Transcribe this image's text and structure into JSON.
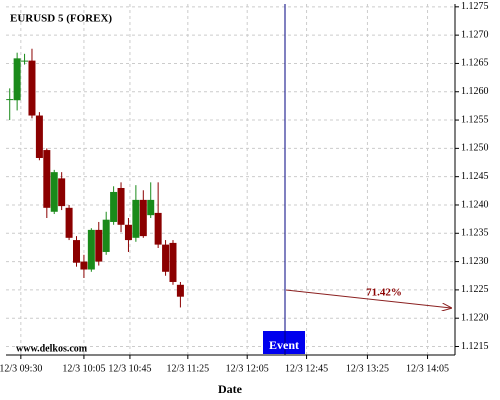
{
  "chart_data": {
    "type": "candlestick",
    "title": "EURUSD 5 (FOREX)",
    "x_label": "Date",
    "source": "www.delkos.com",
    "event_label": "Event",
    "annotation": "71.42%",
    "x": [
      0,
      1,
      2,
      3,
      4,
      5,
      6,
      7,
      8,
      9,
      10,
      11,
      12,
      13,
      14,
      15,
      16,
      17,
      18,
      19,
      20,
      21,
      22,
      23
    ],
    "open": [
      1.12587,
      1.12585,
      1.12655,
      1.12655,
      1.12558,
      1.12497,
      1.12388,
      1.12447,
      1.12395,
      1.12338,
      1.123,
      1.12286,
      1.12356,
      1.12317,
      1.1237,
      1.1243,
      1.12365,
      1.12342,
      1.12409,
      1.12382,
      1.12386,
      1.1233,
      1.12333,
      1.12259
    ],
    "high": [
      1.12606,
      1.12669,
      1.12667,
      1.12676,
      1.12564,
      1.125,
      1.12462,
      1.12458,
      1.124,
      1.12345,
      1.12312,
      1.12359,
      1.1237,
      1.12388,
      1.12433,
      1.1244,
      1.12377,
      1.12435,
      1.12426,
      1.1244,
      1.1244,
      1.12338,
      1.12338,
      1.12264
    ],
    "low": [
      1.1255,
      1.12567,
      1.12648,
      1.12553,
      1.12479,
      1.12377,
      1.12384,
      1.12391,
      1.12338,
      1.12291,
      1.12271,
      1.12282,
      1.12293,
      1.12312,
      1.12365,
      1.12352,
      1.12317,
      1.12335,
      1.12342,
      1.12377,
      1.12324,
      1.12275,
      1.12259,
      1.12219
    ],
    "close": [
      1.12587,
      1.12659,
      1.12655,
      1.12558,
      1.12483,
      1.12395,
      1.12458,
      1.12398,
      1.12342,
      1.12298,
      1.12286,
      1.12356,
      1.123,
      1.12374,
      1.12423,
      1.12365,
      1.12338,
      1.12409,
      1.12345,
      1.12409,
      1.1233,
      1.12282,
      1.12264,
      1.12238
    ],
    "up_color": "#1a8a1a",
    "down_color": "#8b0000",
    "xlim": [
      -0.5,
      60
    ],
    "xticks": [
      {
        "value": 1.5,
        "label": "12/3 09:30"
      },
      {
        "value": 10,
        "label": "12/3 10:05"
      },
      {
        "value": 16.2,
        "label": "12/3 10:45"
      },
      {
        "value": 24,
        "label": "12/3 11:25"
      },
      {
        "value": 32,
        "label": "12/3 12:05"
      },
      {
        "value": 40,
        "label": "12/3 12:45"
      },
      {
        "value": 48.2,
        "label": "12/3 13:25"
      },
      {
        "value": 56.3,
        "label": "12/3 14:05"
      }
    ],
    "ylim": [
      1.12135,
      1.12755
    ],
    "yticks": [
      1.1275,
      {
        "value": 1.127,
        "label": "1.1270"
      },
      1.1265,
      {
        "value": 1.126,
        "label": "1.1260"
      },
      1.1255,
      {
        "value": 1.125,
        "label": "1.1250"
      },
      1.1245,
      {
        "value": 1.124,
        "label": "1.1240"
      },
      1.1235,
      {
        "value": 1.123,
        "label": "1.1230"
      },
      1.1225,
      {
        "value": 1.122,
        "label": "1.1220"
      },
      1.1215
    ],
    "grid": true
  }
}
